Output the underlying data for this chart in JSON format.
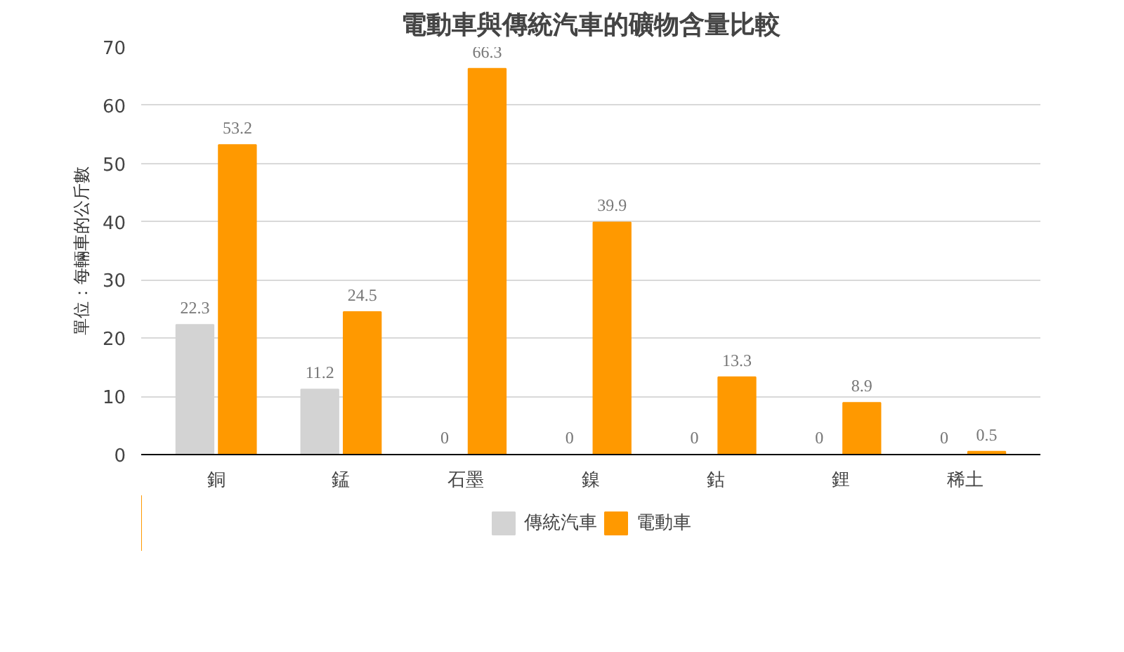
{
  "chart_data": {
    "type": "bar",
    "title": "電動車與傳統汽車的礦物含量比較",
    "ylabel": "單位：每輛車的公斤數",
    "categories": [
      "銅",
      "錳",
      "石墨",
      "鎳",
      "鈷",
      "鋰",
      "稀土"
    ],
    "series": [
      {
        "name": "傳統汽車",
        "color": "#d3d3d3",
        "values": [
          22.3,
          11.2,
          0,
          0,
          0,
          0,
          0
        ]
      },
      {
        "name": "電動車",
        "color": "#ff9900",
        "values": [
          53.2,
          24.5,
          66.3,
          39.9,
          13.3,
          8.9,
          0.5
        ]
      }
    ],
    "ylim": [
      0,
      70
    ],
    "yticks": [
      0,
      10,
      20,
      30,
      40,
      50,
      60,
      70
    ],
    "grid": "y",
    "legend": "bottom",
    "data_labels": true
  }
}
